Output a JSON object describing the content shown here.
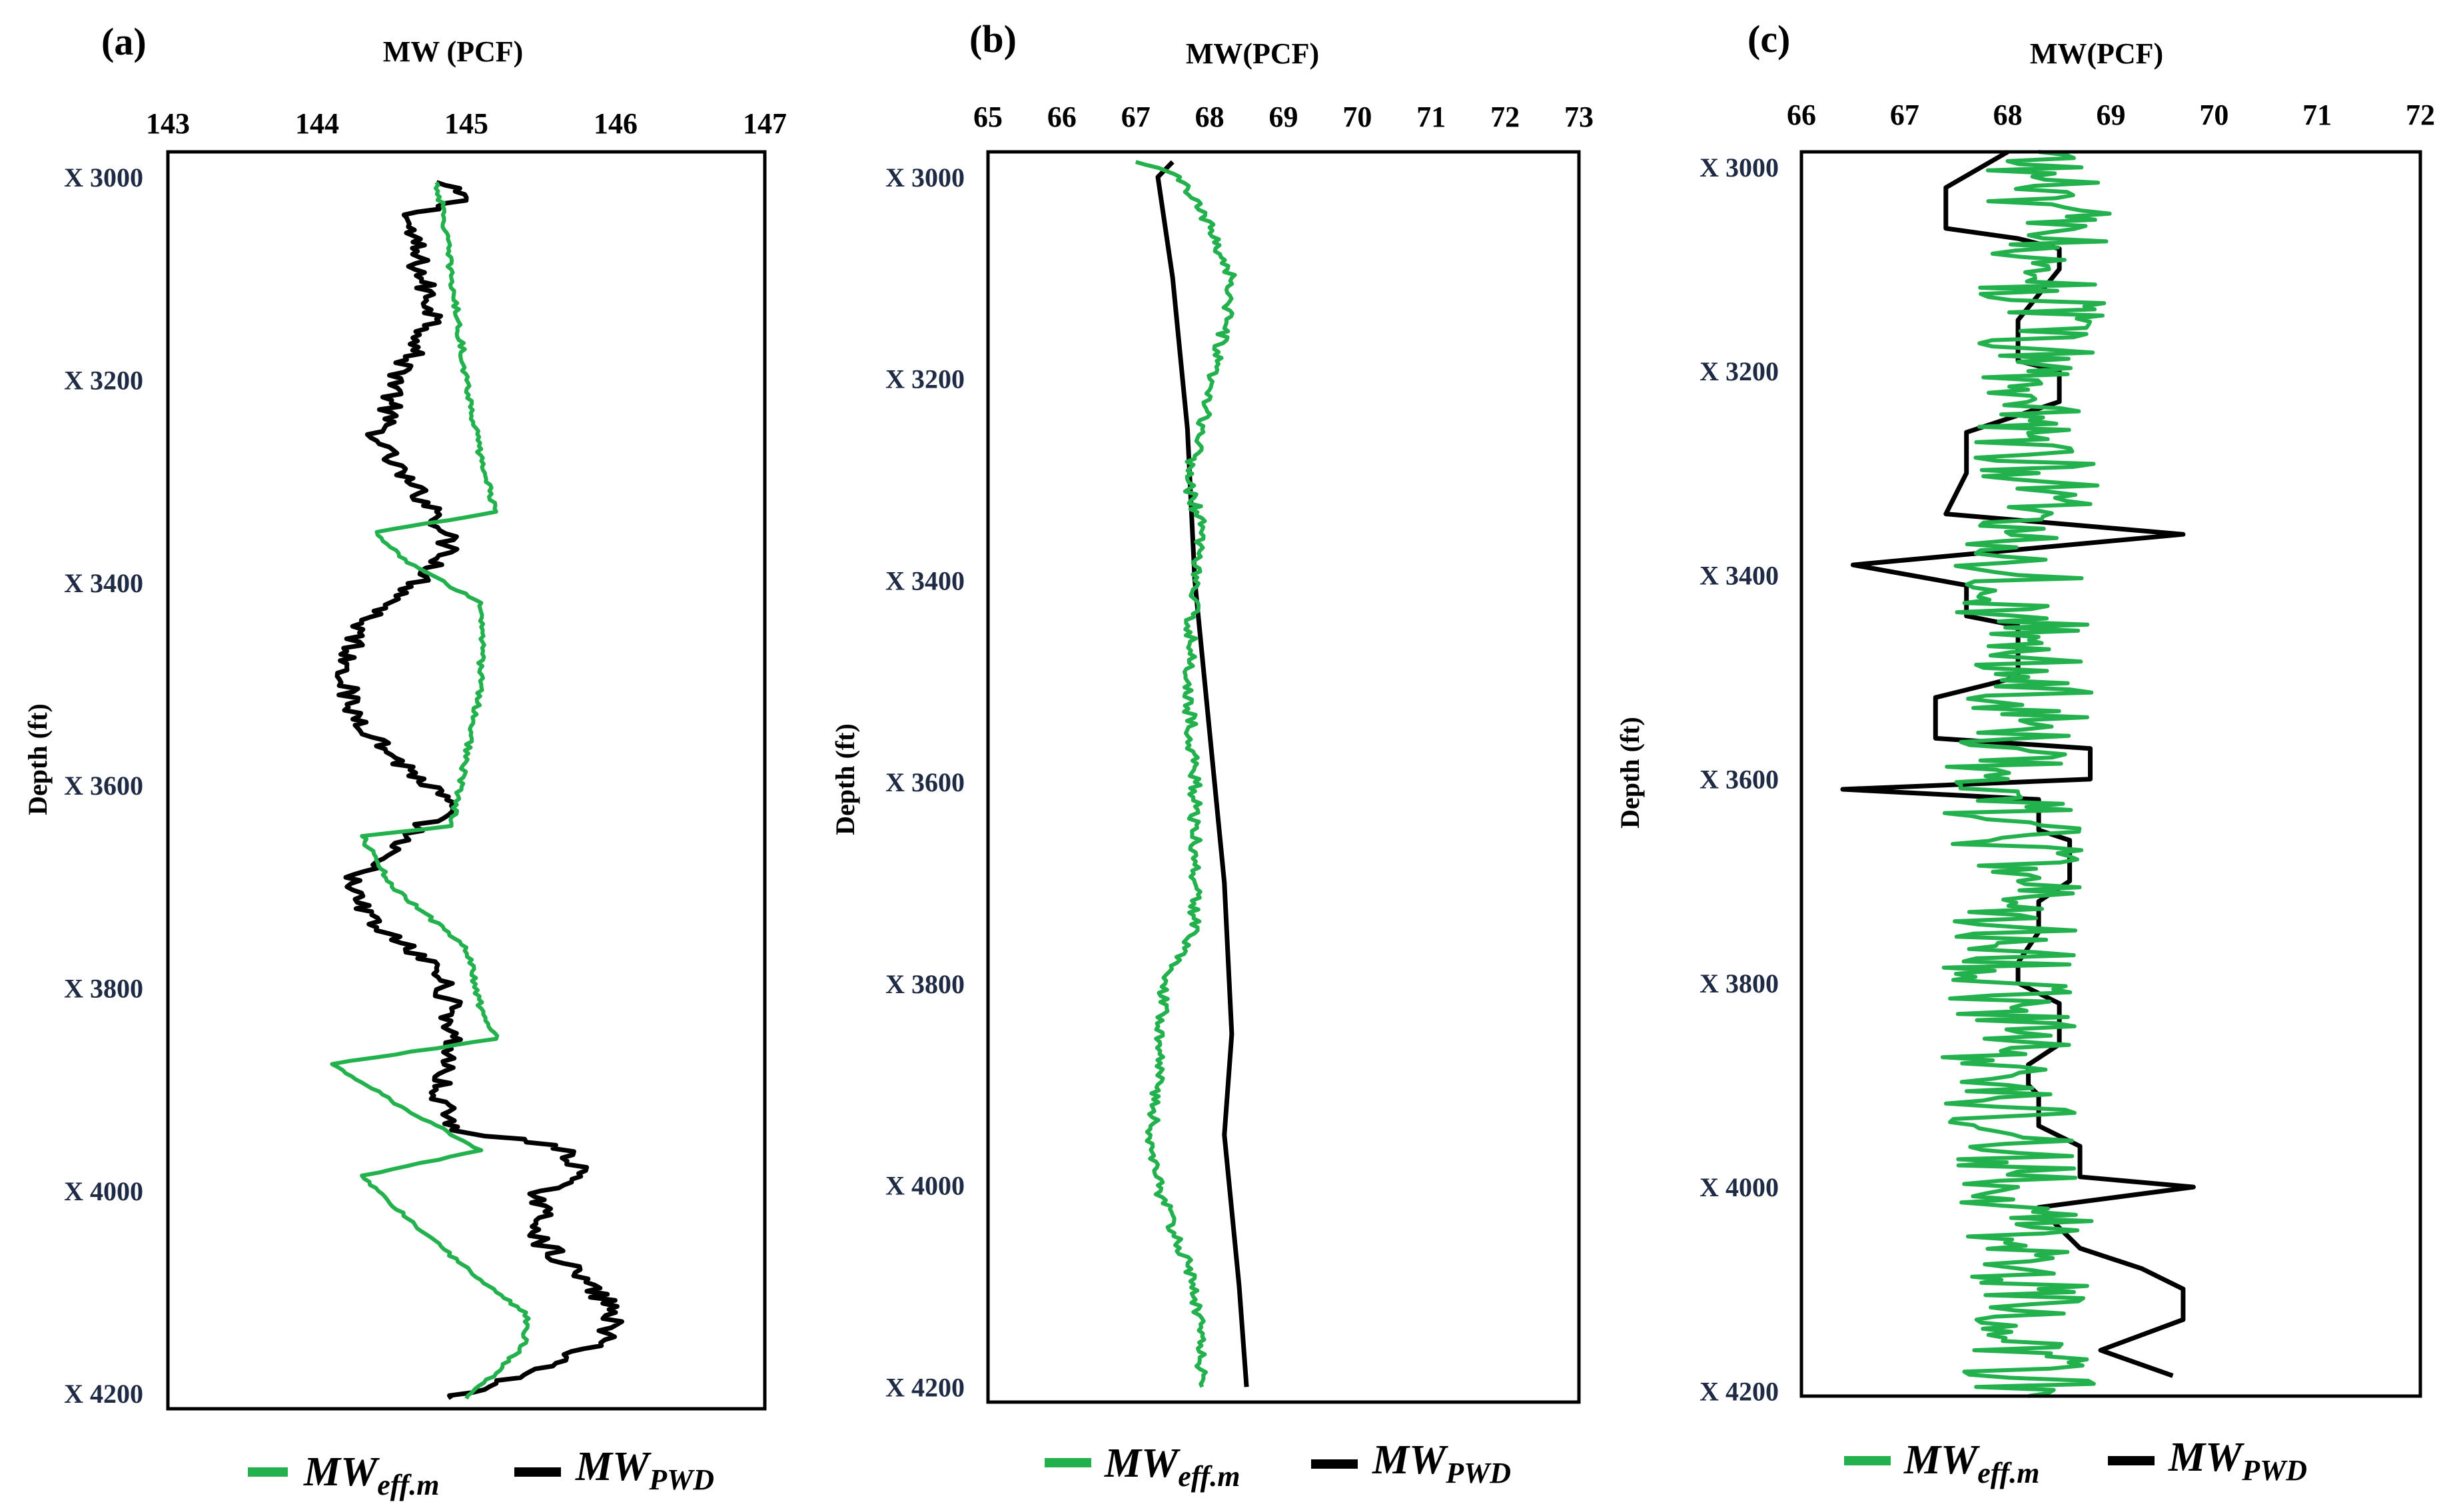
{
  "colors": {
    "eff": "#22b14c",
    "pwd": "#000000"
  },
  "legend": {
    "eff": {
      "base": "MW",
      "sub": "eff.m"
    },
    "pwd": {
      "base": "MW",
      "sub": "PWD"
    }
  },
  "chart_data": [
    {
      "type": "line",
      "panel": "(a)",
      "title": "MW (PCF)",
      "xlabel": "MW (PCF)",
      "ylabel": "Depth (ft)",
      "xlim": [
        143,
        147
      ],
      "ylim": [
        3000,
        4200
      ],
      "ylim_plot": [
        2975,
        4215
      ],
      "xticks": [
        143,
        144,
        145,
        146,
        147
      ],
      "xtick_labels": [
        "143",
        "144",
        "145",
        "146",
        "147"
      ],
      "yticks": [
        3000,
        3200,
        3400,
        3600,
        3800,
        4000,
        4200
      ],
      "ytick_labels": [
        "X 3000",
        "X 3200",
        "X 3400",
        "X 3600",
        "X 3800",
        "X 4000",
        "X 4200"
      ],
      "legend_location": "bottom",
      "series": [
        {
          "name": "MW_PWD",
          "key": "pwd",
          "noise": 0.08,
          "points": [
            [
              144.8,
              3005
            ],
            [
              145.0,
              3020
            ],
            [
              144.6,
              3040
            ],
            [
              144.7,
              3100
            ],
            [
              144.8,
              3140
            ],
            [
              144.6,
              3180
            ],
            [
              144.5,
              3220
            ],
            [
              144.4,
              3260
            ],
            [
              144.6,
              3300
            ],
            [
              144.8,
              3330
            ],
            [
              144.9,
              3370
            ],
            [
              144.6,
              3410
            ],
            [
              144.3,
              3440
            ],
            [
              144.2,
              3480
            ],
            [
              144.2,
              3520
            ],
            [
              144.5,
              3570
            ],
            [
              144.9,
              3620
            ],
            [
              144.5,
              3660
            ],
            [
              144.2,
              3700
            ],
            [
              144.4,
              3740
            ],
            [
              144.8,
              3780
            ],
            [
              144.9,
              3820
            ],
            [
              144.9,
              3860
            ],
            [
              144.8,
              3900
            ],
            [
              144.9,
              3940
            ],
            [
              145.6,
              3955
            ],
            [
              145.8,
              3980
            ],
            [
              145.5,
              4000
            ],
            [
              145.5,
              4050
            ],
            [
              145.8,
              4090
            ],
            [
              146.0,
              4120
            ],
            [
              145.9,
              4150
            ],
            [
              145.6,
              4170
            ],
            [
              145.2,
              4190
            ],
            [
              144.9,
              4205
            ]
          ]
        },
        {
          "name": "MW_eff.m",
          "key": "eff",
          "noise": 0.02,
          "points": [
            [
              144.8,
              3005
            ],
            [
              144.85,
              3040
            ],
            [
              144.9,
              3100
            ],
            [
              145.0,
              3200
            ],
            [
              145.1,
              3280
            ],
            [
              145.2,
              3330
            ],
            [
              144.4,
              3350
            ],
            [
              144.6,
              3380
            ],
            [
              145.1,
              3420
            ],
            [
              145.1,
              3500
            ],
            [
              144.9,
              3640
            ],
            [
              144.3,
              3650
            ],
            [
              144.5,
              3700
            ],
            [
              145.0,
              3760
            ],
            [
              145.1,
              3820
            ],
            [
              145.2,
              3850
            ],
            [
              144.1,
              3875
            ],
            [
              144.6,
              3920
            ],
            [
              145.1,
              3960
            ],
            [
              144.3,
              3985
            ],
            [
              144.7,
              4040
            ],
            [
              145.2,
              4100
            ],
            [
              145.4,
              4120
            ],
            [
              145.4,
              4150
            ],
            [
              145.2,
              4180
            ],
            [
              145.0,
              4205
            ]
          ]
        }
      ]
    },
    {
      "type": "line",
      "panel": "(b)",
      "title": "MW(PCF)",
      "xlabel": "MW(PCF)",
      "ylabel": "Depth (ft)",
      "xlim": [
        65,
        73
      ],
      "ylim": [
        3000,
        4200
      ],
      "ylim_plot": [
        2975,
        4215
      ],
      "xticks": [
        65,
        66,
        67,
        68,
        69,
        70,
        71,
        72,
        73
      ],
      "xtick_labels": [
        "65",
        "66",
        "67",
        "68",
        "69",
        "70",
        "71",
        "72",
        "73"
      ],
      "yticks": [
        3000,
        3200,
        3400,
        3600,
        3800,
        4000,
        4200
      ],
      "ytick_labels": [
        "X 3000",
        "X 3200",
        "X 3400",
        "X 3600",
        "X 3800",
        "X 4000",
        "X 4200"
      ],
      "legend_location": "bottom",
      "series": [
        {
          "name": "MW_PWD",
          "key": "pwd",
          "noise": 0,
          "points": [
            [
              67.5,
              2985
            ],
            [
              67.3,
              3000
            ],
            [
              67.5,
              3100
            ],
            [
              67.7,
              3250
            ],
            [
              67.8,
              3400
            ],
            [
              68.0,
              3550
            ],
            [
              68.2,
              3700
            ],
            [
              68.3,
              3850
            ],
            [
              68.2,
              3950
            ],
            [
              68.4,
              4100
            ],
            [
              68.5,
              4200
            ]
          ]
        },
        {
          "name": "MW_eff.m",
          "key": "eff",
          "noise": 0.08,
          "points": [
            [
              67.0,
              2985
            ],
            [
              67.6,
              3000
            ],
            [
              68.0,
              3050
            ],
            [
              68.3,
              3100
            ],
            [
              68.2,
              3150
            ],
            [
              68.0,
              3200
            ],
            [
              67.9,
              3250
            ],
            [
              67.7,
              3300
            ],
            [
              67.9,
              3350
            ],
            [
              67.8,
              3400
            ],
            [
              67.7,
              3500
            ],
            [
              67.8,
              3600
            ],
            [
              67.8,
              3700
            ],
            [
              67.8,
              3750
            ],
            [
              67.4,
              3800
            ],
            [
              67.3,
              3900
            ],
            [
              67.2,
              3950
            ],
            [
              67.3,
              4000
            ],
            [
              67.7,
              4080
            ],
            [
              67.9,
              4150
            ],
            [
              67.9,
              4200
            ]
          ]
        }
      ]
    },
    {
      "type": "line",
      "panel": "(c)",
      "title": "MW(PCF)",
      "xlabel": "MW(PCF)",
      "ylabel": "Depth (ft)",
      "xlim": [
        66,
        72
      ],
      "ylim": [
        3000,
        4200
      ],
      "ylim_plot": [
        2985,
        4205
      ],
      "xticks": [
        66,
        67,
        68,
        69,
        70,
        71,
        72
      ],
      "xtick_labels": [
        "66",
        "67",
        "68",
        "69",
        "70",
        "71",
        "72"
      ],
      "yticks": [
        3000,
        3200,
        3400,
        3600,
        3800,
        4000,
        4200
      ],
      "ytick_labels": [
        "X 3000",
        "X 3200",
        "X 3400",
        "X 3600",
        "X 3800",
        "X 4000",
        "X 4200"
      ],
      "legend_location": "bottom",
      "series": [
        {
          "name": "MW_PWD",
          "key": "pwd",
          "noise": 0,
          "points": [
            [
              68.0,
              2985
            ],
            [
              67.4,
              3020
            ],
            [
              67.4,
              3060
            ],
            [
              68.1,
              3070
            ],
            [
              68.5,
              3080
            ],
            [
              68.5,
              3100
            ],
            [
              68.1,
              3150
            ],
            [
              68.1,
              3190
            ],
            [
              68.5,
              3200
            ],
            [
              68.5,
              3230
            ],
            [
              67.6,
              3260
            ],
            [
              67.6,
              3300
            ],
            [
              67.4,
              3340
            ],
            [
              69.7,
              3360
            ],
            [
              66.5,
              3390
            ],
            [
              67.6,
              3410
            ],
            [
              67.6,
              3440
            ],
            [
              68.1,
              3450
            ],
            [
              68.1,
              3500
            ],
            [
              67.3,
              3520
            ],
            [
              67.3,
              3560
            ],
            [
              68.8,
              3570
            ],
            [
              68.8,
              3600
            ],
            [
              66.4,
              3610
            ],
            [
              68.3,
              3620
            ],
            [
              68.3,
              3650
            ],
            [
              68.6,
              3660
            ],
            [
              68.6,
              3700
            ],
            [
              68.3,
              3720
            ],
            [
              68.3,
              3750
            ],
            [
              68.1,
              3780
            ],
            [
              68.1,
              3800
            ],
            [
              68.5,
              3820
            ],
            [
              68.5,
              3860
            ],
            [
              68.2,
              3880
            ],
            [
              68.2,
              3900
            ],
            [
              68.3,
              3910
            ],
            [
              68.3,
              3940
            ],
            [
              68.7,
              3960
            ],
            [
              68.7,
              3990
            ],
            [
              69.8,
              4000
            ],
            [
              68.3,
              4020
            ],
            [
              68.7,
              4060
            ],
            [
              69.3,
              4080
            ],
            [
              69.7,
              4100
            ],
            [
              69.7,
              4130
            ],
            [
              68.9,
              4160
            ],
            [
              69.6,
              4185
            ]
          ]
        },
        {
          "name": "MW_eff.m",
          "key": "eff",
          "noise": 0.65,
          "points": [
            [
              68.3,
              2985
            ],
            [
              68.4,
              3100
            ],
            [
              68.2,
              3200
            ],
            [
              68.3,
              3300
            ],
            [
              68.1,
              3400
            ],
            [
              68.2,
              3500
            ],
            [
              68.0,
              3600
            ],
            [
              68.1,
              3700
            ],
            [
              68.0,
              3800
            ],
            [
              68.0,
              3900
            ],
            [
              68.1,
              4000
            ],
            [
              68.3,
              4100
            ],
            [
              68.2,
              4205
            ]
          ]
        }
      ]
    }
  ]
}
